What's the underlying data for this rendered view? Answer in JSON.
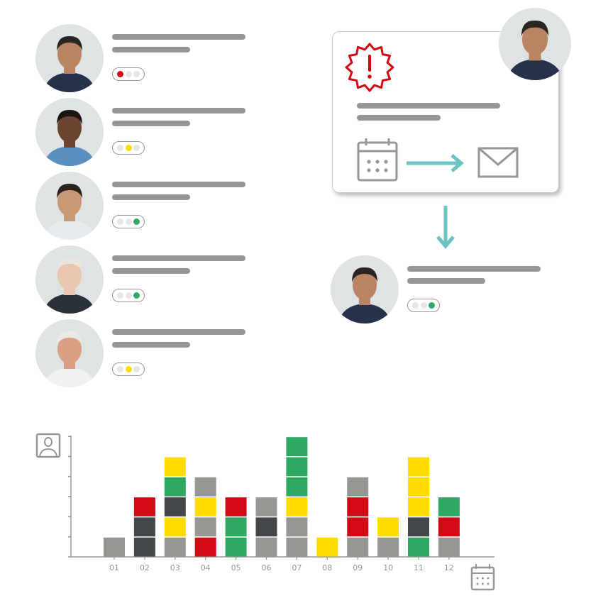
{
  "colors": {
    "gray": "#959892",
    "dark": "#42474a",
    "red": "#d20a14",
    "yellow": "#ffdc00",
    "green": "#2fa862",
    "teal": "#6cc3c3",
    "off": "#e6e6e6"
  },
  "people": [
    {
      "status": "red",
      "skin": "#b98463",
      "hair": "#2a2522",
      "shirt": "#25324a"
    },
    {
      "status": "yellow",
      "skin": "#6b4431",
      "hair": "#1c1612",
      "shirt": "#5a8fbf"
    },
    {
      "status": "green",
      "skin": "#c99877",
      "hair": "#2c231e",
      "shirt": "#e7ebf0"
    },
    {
      "status": "green",
      "skin": "#e9c7b2",
      "hair": "#e8e5de",
      "shirt": "#2b3138"
    },
    {
      "status": "yellow",
      "skin": "#d8a184",
      "hair": "#ece9e3",
      "shirt": "#f1f1f1"
    }
  ],
  "workflow": {
    "alert_icon": "alert-badge-icon",
    "from_icon": "calendar-icon",
    "to_icon": "envelope-icon",
    "result_status": "green"
  },
  "chart_data": {
    "type": "bar",
    "stacked": true,
    "categories": [
      "01",
      "02",
      "03",
      "04",
      "05",
      "06",
      "07",
      "08",
      "09",
      "10",
      "11",
      "12"
    ],
    "stacks_bottom_to_top": [
      [
        "gray"
      ],
      [
        "dark",
        "dark",
        "red"
      ],
      [
        "gray",
        "yellow",
        "dark",
        "green",
        "yellow"
      ],
      [
        "red",
        "gray",
        "yellow",
        "gray"
      ],
      [
        "green",
        "green",
        "red"
      ],
      [
        "gray",
        "dark",
        "gray"
      ],
      [
        "gray",
        "gray",
        "yellow",
        "green",
        "green",
        "green"
      ],
      [
        "yellow"
      ],
      [
        "gray",
        "red",
        "red",
        "gray"
      ],
      [
        "gray",
        "yellow"
      ],
      [
        "green",
        "dark",
        "yellow",
        "yellow",
        "yellow"
      ],
      [
        "gray",
        "red",
        "green"
      ]
    ],
    "ylim": [
      0,
      6
    ],
    "y_axis_icon": "person-icon",
    "x_axis_icon": "calendar-icon"
  }
}
